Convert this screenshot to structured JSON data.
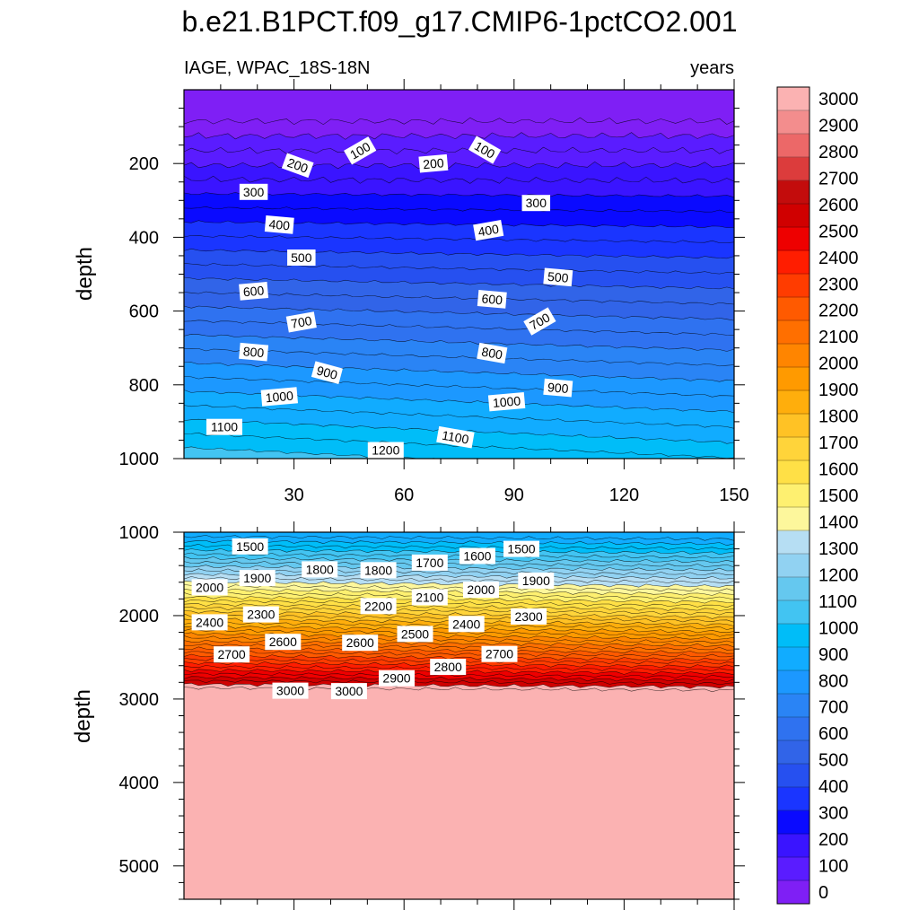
{
  "title": "b.e21.B1PCT.f09_g17.CMIP6-1pctCO2.001",
  "chart_data": [
    {
      "type": "contour",
      "panel": "upper",
      "left_label": "IAGE, WPAC_18S-18N",
      "right_label": "years",
      "ylabel": "depth",
      "xlim": [
        0,
        150
      ],
      "ylim": [
        0,
        1000
      ],
      "y_reversed": true,
      "x_ticks": [
        30,
        60,
        90,
        120,
        150
      ],
      "y_ticks": [
        200,
        400,
        600,
        800,
        1000
      ],
      "x_tick_labels": [
        "30",
        "60",
        "90",
        "120",
        "150"
      ],
      "y_tick_labels": [
        "200",
        "400",
        "600",
        "800",
        "1000"
      ],
      "contour_labels": [
        {
          "text": "100",
          "x": 48,
          "y": 165,
          "angle": -30
        },
        {
          "text": "100",
          "x": 82,
          "y": 163,
          "angle": 30
        },
        {
          "text": "200",
          "x": 31,
          "y": 205,
          "angle": 20
        },
        {
          "text": "200",
          "x": 68,
          "y": 200,
          "angle": -5
        },
        {
          "text": "300",
          "x": 19,
          "y": 277,
          "angle": 0
        },
        {
          "text": "300",
          "x": 96,
          "y": 307,
          "angle": 0
        },
        {
          "text": "400",
          "x": 26,
          "y": 366,
          "angle": 5
        },
        {
          "text": "400",
          "x": 83,
          "y": 381,
          "angle": -10
        },
        {
          "text": "500",
          "x": 32,
          "y": 455,
          "angle": 0
        },
        {
          "text": "500",
          "x": 102,
          "y": 508,
          "angle": 5
        },
        {
          "text": "600",
          "x": 19,
          "y": 546,
          "angle": -5
        },
        {
          "text": "600",
          "x": 84,
          "y": 568,
          "angle": 5
        },
        {
          "text": "700",
          "x": 32,
          "y": 630,
          "angle": -10
        },
        {
          "text": "700",
          "x": 97,
          "y": 628,
          "angle": -30
        },
        {
          "text": "800",
          "x": 19,
          "y": 711,
          "angle": 5
        },
        {
          "text": "800",
          "x": 84,
          "y": 714,
          "angle": 10
        },
        {
          "text": "900",
          "x": 39,
          "y": 767,
          "angle": 15
        },
        {
          "text": "900",
          "x": 102,
          "y": 808,
          "angle": 5
        },
        {
          "text": "1000",
          "x": 26,
          "y": 832,
          "angle": -5
        },
        {
          "text": "1000",
          "x": 88,
          "y": 846,
          "angle": -5
        },
        {
          "text": "1100",
          "x": 11,
          "y": 914,
          "angle": 0
        },
        {
          "text": "1100",
          "x": 74,
          "y": 942,
          "angle": 10
        },
        {
          "text": "1200",
          "x": 55,
          "y": 977,
          "angle": 0
        }
      ]
    },
    {
      "type": "contour",
      "panel": "lower",
      "ylabel": "depth",
      "xlim": [
        0,
        150
      ],
      "ylim": [
        1000,
        5400
      ],
      "y_reversed": true,
      "y_ticks": [
        1000,
        2000,
        3000,
        4000,
        5000
      ],
      "y_tick_labels": [
        "1000",
        "2000",
        "3000",
        "4000",
        "5000"
      ],
      "contour_labels": [
        {
          "text": "1500",
          "x": 18,
          "y": 1170,
          "angle": 0
        },
        {
          "text": "1500",
          "x": 92,
          "y": 1200,
          "angle": 0
        },
        {
          "text": "1600",
          "x": 80,
          "y": 1285,
          "angle": 0
        },
        {
          "text": "1700",
          "x": 67,
          "y": 1365,
          "angle": 0
        },
        {
          "text": "1800",
          "x": 37,
          "y": 1445,
          "angle": 0
        },
        {
          "text": "1800",
          "x": 53,
          "y": 1455,
          "angle": 0
        },
        {
          "text": "1900",
          "x": 20,
          "y": 1550,
          "angle": 0
        },
        {
          "text": "1900",
          "x": 96,
          "y": 1580,
          "angle": 0
        },
        {
          "text": "2000",
          "x": 7,
          "y": 1660,
          "angle": 0
        },
        {
          "text": "2000",
          "x": 81,
          "y": 1690,
          "angle": 0
        },
        {
          "text": "2100",
          "x": 67,
          "y": 1780,
          "angle": 0
        },
        {
          "text": "2200",
          "x": 53,
          "y": 1885,
          "angle": 0
        },
        {
          "text": "2300",
          "x": 21,
          "y": 1985,
          "angle": 0
        },
        {
          "text": "2300",
          "x": 94,
          "y": 2010,
          "angle": 0
        },
        {
          "text": "2400",
          "x": 7,
          "y": 2080,
          "angle": 0
        },
        {
          "text": "2400",
          "x": 77,
          "y": 2100,
          "angle": 0
        },
        {
          "text": "2500",
          "x": 63,
          "y": 2220,
          "angle": 0
        },
        {
          "text": "2600",
          "x": 27,
          "y": 2315,
          "angle": 0
        },
        {
          "text": "2600",
          "x": 48,
          "y": 2325,
          "angle": 0
        },
        {
          "text": "2700",
          "x": 13,
          "y": 2465,
          "angle": 0
        },
        {
          "text": "2700",
          "x": 86,
          "y": 2460,
          "angle": 0
        },
        {
          "text": "2800",
          "x": 72,
          "y": 2615,
          "angle": 0
        },
        {
          "text": "2900",
          "x": 58,
          "y": 2750,
          "angle": 0
        },
        {
          "text": "3000",
          "x": 29,
          "y": 2900,
          "angle": 0
        },
        {
          "text": "3000",
          "x": 45,
          "y": 2905,
          "angle": 0
        }
      ]
    }
  ],
  "colorbar": {
    "levels": [
      "0",
      "100",
      "200",
      "300",
      "400",
      "500",
      "600",
      "700",
      "800",
      "900",
      "1000",
      "1100",
      "1200",
      "1300",
      "1400",
      "1500",
      "1600",
      "1700",
      "1800",
      "1900",
      "2000",
      "2100",
      "2200",
      "2300",
      "2400",
      "2500",
      "2600",
      "2700",
      "2800",
      "2900",
      "3000"
    ],
    "colors": [
      "#7f1ff5",
      "#5a1cff",
      "#3a14ff",
      "#0a0aff",
      "#1a35ff",
      "#2650f0",
      "#3164e8",
      "#2f72f0",
      "#2a84f5",
      "#1c98ff",
      "#11acff",
      "#00bdf8",
      "#42c4f2",
      "#65c8ef",
      "#91d2f2",
      "#b6def3",
      "#fdf79c",
      "#fef070",
      "#ffe046",
      "#ffd43a",
      "#ffc225",
      "#ffae0c",
      "#ff9a00",
      "#ff8500",
      "#ff6f00",
      "#ff5a00",
      "#ff3c00",
      "#ff1d00",
      "#ee0000",
      "#d00000",
      "#c30c0c",
      "#dc3c3c",
      "#ec6868",
      "#f38d8d",
      "#fbb2b2"
    ]
  }
}
